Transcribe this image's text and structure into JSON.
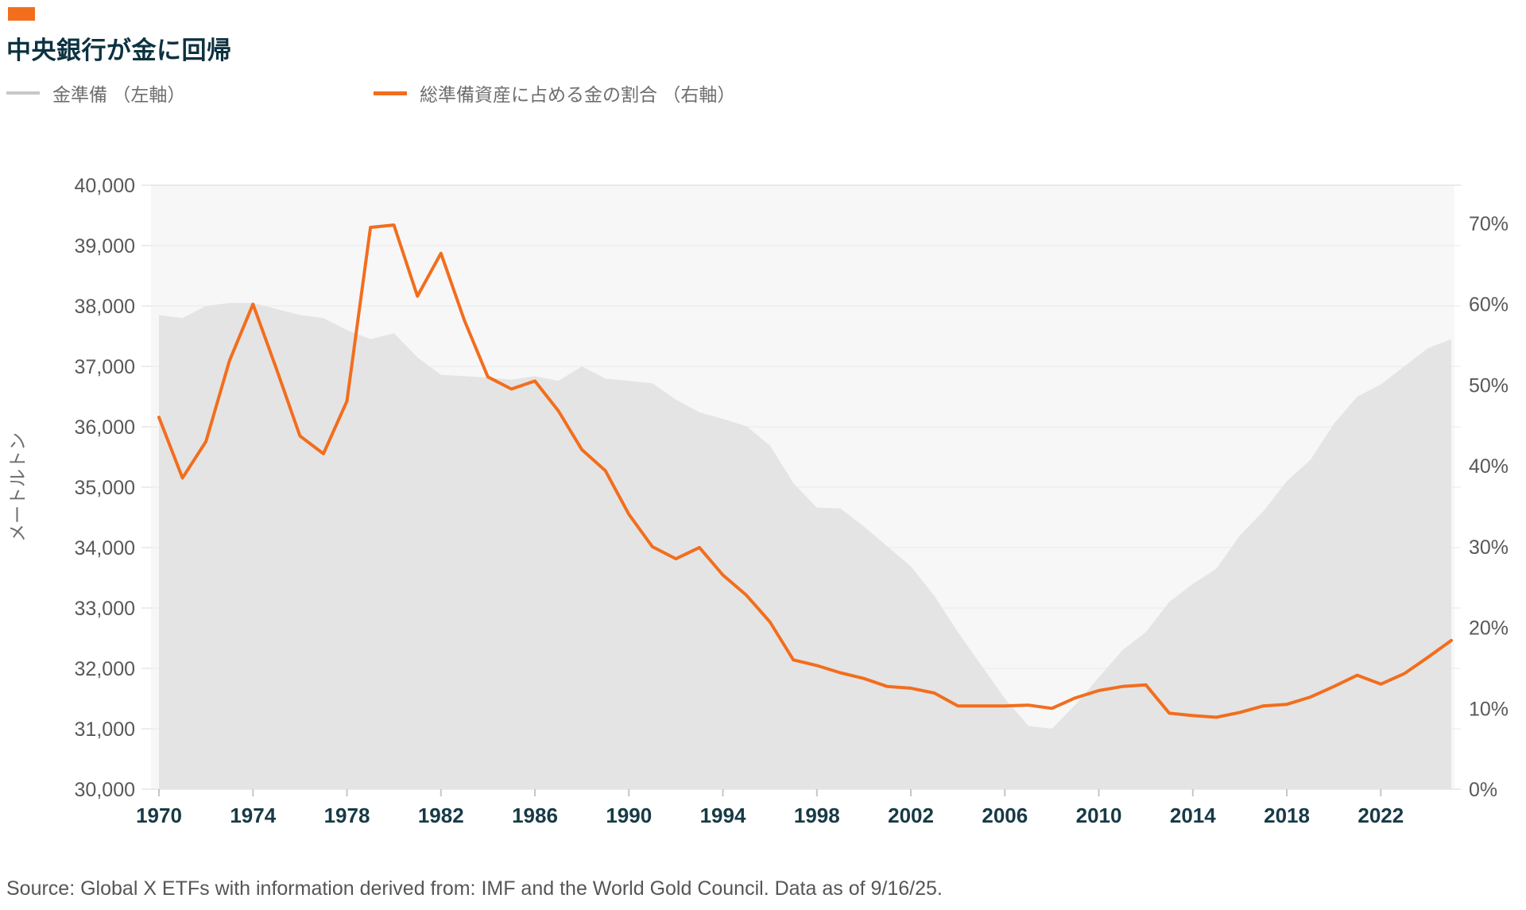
{
  "header": {
    "title": "中央銀行が金に回帰",
    "accent_color": "#F26E1D"
  },
  "legend": {
    "items": [
      {
        "label": "金準備 （左軸）",
        "swatch_color": "#C8C8C8",
        "swatch_height": 4
      },
      {
        "label": "総準備資産に占める金の割合 （右軸）",
        "swatch_color": "#F26E1D",
        "swatch_height": 5
      }
    ]
  },
  "chart_data": {
    "type": "area+line combo, dual axis",
    "x": [
      1970,
      1971,
      1972,
      1973,
      1974,
      1975,
      1976,
      1977,
      1978,
      1979,
      1980,
      1981,
      1982,
      1983,
      1984,
      1985,
      1986,
      1987,
      1988,
      1989,
      1990,
      1991,
      1992,
      1993,
      1994,
      1995,
      1996,
      1997,
      1998,
      1999,
      2000,
      2001,
      2002,
      2003,
      2004,
      2005,
      2006,
      2007,
      2008,
      2009,
      2010,
      2011,
      2012,
      2013,
      2014,
      2015,
      2016,
      2017,
      2018,
      2019,
      2020,
      2021,
      2022,
      2023,
      2024,
      2025
    ],
    "series": [
      {
        "name": "金準備",
        "type": "area",
        "axis": "left",
        "unit": "メートルトン",
        "color": "#E4E4E5",
        "values": [
          37850,
          37800,
          38000,
          38050,
          38050,
          37950,
          37850,
          37800,
          37600,
          37450,
          37550,
          37150,
          36860,
          36840,
          36815,
          36780,
          36840,
          36760,
          37000,
          36800,
          36760,
          36720,
          36450,
          36240,
          36130,
          36010,
          35690,
          35070,
          34660,
          34650,
          34350,
          34020,
          33690,
          33200,
          32600,
          32050,
          31500,
          31050,
          31000,
          31400,
          31850,
          32300,
          32600,
          33100,
          33400,
          33650,
          34200,
          34600,
          35100,
          35450,
          36050,
          36500,
          36700,
          37000,
          37300,
          37450
        ]
      },
      {
        "name": "総準備資産に占める金の割合",
        "type": "line",
        "axis": "right",
        "unit": "%",
        "color": "#F26E1D",
        "values": [
          46.0,
          38.5,
          43.0,
          53.0,
          60.0,
          52.0,
          43.7,
          41.5,
          48.0,
          69.5,
          69.8,
          61.0,
          66.3,
          58.0,
          51.0,
          49.5,
          50.5,
          46.8,
          42.0,
          39.4,
          34.0,
          30.0,
          28.5,
          29.9,
          26.5,
          24.0,
          20.7,
          16.0,
          15.3,
          14.4,
          13.7,
          12.7,
          12.5,
          11.9,
          10.3,
          10.3,
          10.3,
          10.4,
          10.0,
          11.3,
          12.2,
          12.7,
          12.9,
          9.4,
          9.1,
          8.9,
          9.5,
          10.3,
          10.5,
          11.4,
          12.7,
          14.1,
          13.0,
          14.3,
          16.3,
          18.4
        ]
      }
    ],
    "left_axis": {
      "label": "メートルトン",
      "min": 30000,
      "max": 40000,
      "tick_values": [
        30000,
        31000,
        32000,
        33000,
        34000,
        35000,
        36000,
        37000,
        38000,
        39000,
        40000
      ],
      "tick_labels": [
        "30,000",
        "31,000",
        "32,000",
        "33,000",
        "34,000",
        "35,000",
        "36,000",
        "37,000",
        "38,000",
        "39,000",
        "40,000"
      ]
    },
    "right_axis": {
      "min": 0,
      "max": 74.7,
      "tick_values": [
        0,
        10,
        20,
        30,
        40,
        50,
        60,
        70
      ],
      "tick_labels": [
        "0%",
        "10%",
        "20%",
        "30%",
        "40%",
        "50%",
        "60%",
        "70%"
      ]
    },
    "x_axis": {
      "tick_years": [
        1970,
        1974,
        1978,
        1982,
        1986,
        1990,
        1994,
        1998,
        2002,
        2006,
        2010,
        2014,
        2018,
        2022
      ]
    },
    "grid": "horizontal lines at each 1,000 metric tons, plot background #F7F7F8",
    "legend_position": "top-left above plot"
  },
  "source": {
    "text": "Source: Global X ETFs with information derived from: IMF and the World Gold Council. Data as of 9/16/25."
  }
}
